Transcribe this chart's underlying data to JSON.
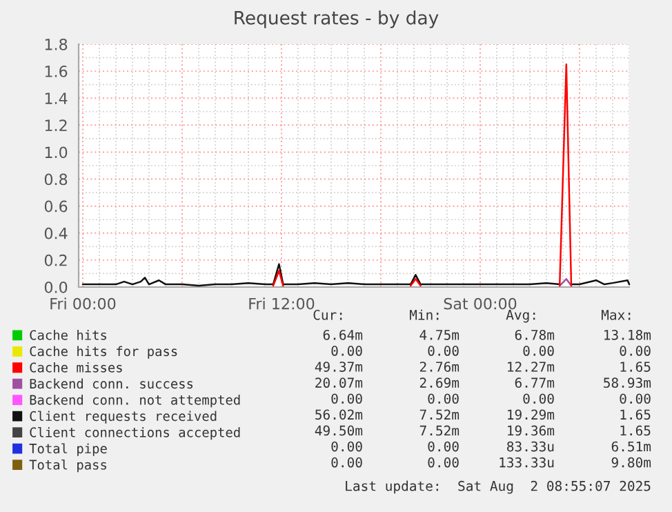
{
  "chart_data": {
    "type": "line",
    "title": "Request rates - by day",
    "x": [
      "2025-08-01T00:00",
      "2025-08-01T01:00",
      "2025-08-01T02:00",
      "2025-08-01T02:30",
      "2025-08-01T03:00",
      "2025-08-01T03:30",
      "2025-08-01T03:45",
      "2025-08-01T04:00",
      "2025-08-01T04:36",
      "2025-08-01T05:00",
      "2025-08-01T06:00",
      "2025-08-01T07:00",
      "2025-08-01T08:00",
      "2025-08-01T09:00",
      "2025-08-01T10:00",
      "2025-08-01T11:00",
      "2025-08-01T11:30",
      "2025-08-01T11:51",
      "2025-08-01T12:06",
      "2025-08-01T13:00",
      "2025-08-01T14:00",
      "2025-08-01T15:00",
      "2025-08-01T16:00",
      "2025-08-01T17:00",
      "2025-08-01T18:00",
      "2025-08-01T19:00",
      "2025-08-01T19:48",
      "2025-08-01T20:06",
      "2025-08-01T20:24",
      "2025-08-01T21:00",
      "2025-08-01T22:00",
      "2025-08-01T23:00",
      "2025-08-02T00:00",
      "2025-08-02T01:00",
      "2025-08-02T02:00",
      "2025-08-02T03:00",
      "2025-08-02T04:00",
      "2025-08-02T04:48",
      "2025-08-02T05:12",
      "2025-08-02T05:30",
      "2025-08-02T06:00",
      "2025-08-02T07:00",
      "2025-08-02T07:30",
      "2025-08-02T08:00",
      "2025-08-02T08:54",
      "2025-08-02T09:00"
    ],
    "series": [
      {
        "name": "Cache hits",
        "color": "#00cc00",
        "values": [
          null,
          null,
          null,
          null,
          null,
          null,
          null,
          null,
          null,
          null,
          null,
          null,
          null,
          null,
          null,
          null,
          null,
          null,
          null,
          null,
          null,
          null,
          null,
          null,
          null,
          null,
          null,
          null,
          null,
          null,
          null,
          null,
          null,
          null,
          null,
          null,
          null,
          null,
          null,
          null,
          null,
          null,
          null,
          null,
          null,
          null
        ]
      },
      {
        "name": "Cache hits for pass",
        "color": "#e8e800",
        "values": [
          null,
          null,
          null,
          null,
          null,
          null,
          null,
          null,
          null,
          null,
          null,
          null,
          null,
          null,
          null,
          null,
          null,
          null,
          null,
          null,
          null,
          null,
          null,
          null,
          null,
          null,
          null,
          null,
          null,
          null,
          null,
          null,
          null,
          null,
          null,
          null,
          null,
          null,
          null,
          null,
          null,
          null,
          null,
          null,
          null,
          null
        ]
      },
      {
        "name": "Cache misses",
        "color": "#ff0000",
        "values": [
          null,
          null,
          null,
          null,
          null,
          null,
          null,
          null,
          null,
          null,
          null,
          null,
          null,
          null,
          null,
          null,
          0.01,
          0.12,
          0.01,
          null,
          null,
          null,
          null,
          null,
          null,
          null,
          0.01,
          0.06,
          0.01,
          null,
          null,
          null,
          null,
          null,
          null,
          null,
          null,
          0.01,
          1.65,
          0.01,
          null,
          null,
          null,
          null,
          null,
          null
        ]
      },
      {
        "name": "Backend conn. success",
        "color": "#a050a0",
        "values": [
          null,
          null,
          null,
          null,
          null,
          null,
          null,
          null,
          null,
          null,
          null,
          null,
          null,
          null,
          null,
          null,
          null,
          null,
          null,
          null,
          null,
          null,
          null,
          null,
          null,
          null,
          null,
          null,
          null,
          null,
          null,
          null,
          null,
          null,
          null,
          null,
          null,
          0.01,
          0.06,
          0.01,
          null,
          null,
          null,
          null,
          null,
          null
        ]
      },
      {
        "name": "Backend conn. not attempted",
        "color": "#ff55ff",
        "values": [
          null,
          null,
          null,
          null,
          null,
          null,
          null,
          null,
          null,
          null,
          null,
          null,
          null,
          null,
          null,
          null,
          null,
          null,
          null,
          null,
          null,
          null,
          null,
          null,
          null,
          null,
          null,
          null,
          null,
          null,
          null,
          null,
          null,
          null,
          null,
          null,
          null,
          null,
          null,
          null,
          null,
          null,
          null,
          null,
          null,
          null
        ]
      },
      {
        "name": "Client requests received",
        "color": "#111111",
        "values": [
          0.02,
          0.02,
          0.02,
          0.04,
          0.02,
          0.04,
          0.07,
          0.02,
          0.05,
          0.02,
          0.02,
          0.01,
          0.02,
          0.02,
          0.03,
          0.02,
          0.02,
          0.17,
          0.02,
          0.02,
          0.03,
          0.02,
          0.03,
          0.02,
          0.02,
          0.02,
          0.02,
          0.09,
          0.02,
          0.02,
          0.02,
          0.02,
          0.02,
          0.02,
          0.02,
          0.02,
          0.03,
          0.02,
          null,
          0.02,
          0.02,
          0.05,
          0.02,
          0.03,
          0.05,
          0.02
        ]
      },
      {
        "name": "Client connections accepted",
        "color": "#444444",
        "values": [
          null,
          null,
          null,
          null,
          null,
          null,
          null,
          null,
          null,
          null,
          null,
          null,
          null,
          null,
          null,
          null,
          null,
          null,
          null,
          null,
          null,
          null,
          null,
          null,
          null,
          null,
          null,
          null,
          null,
          null,
          null,
          null,
          null,
          null,
          null,
          null,
          null,
          null,
          null,
          null,
          null,
          null,
          null,
          null,
          null,
          null
        ]
      },
      {
        "name": "Total pipe",
        "color": "#2030e0",
        "values": [
          null,
          null,
          null,
          null,
          null,
          null,
          null,
          null,
          null,
          null,
          null,
          null,
          null,
          null,
          null,
          null,
          null,
          null,
          null,
          null,
          null,
          null,
          null,
          null,
          null,
          null,
          null,
          null,
          null,
          null,
          null,
          null,
          null,
          null,
          null,
          null,
          null,
          null,
          null,
          null,
          null,
          null,
          null,
          null,
          null,
          null
        ]
      },
      {
        "name": "Total pass",
        "color": "#7f5f10",
        "values": [
          null,
          null,
          null,
          null,
          null,
          null,
          null,
          null,
          null,
          null,
          null,
          null,
          null,
          null,
          null,
          null,
          null,
          null,
          null,
          null,
          null,
          null,
          null,
          null,
          null,
          null,
          null,
          null,
          null,
          null,
          null,
          null,
          null,
          null,
          null,
          null,
          null,
          null,
          null,
          null,
          null,
          null,
          null,
          null,
          null,
          null
        ]
      }
    ],
    "xlim": [
      "2025-07-31T23:45",
      "2025-08-02T09:00"
    ],
    "xticks": [
      {
        "value": "2025-08-01T00:00",
        "label": "Fri 00:00"
      },
      {
        "value": "2025-08-01T06:00",
        "label": null
      },
      {
        "value": "2025-08-01T12:00",
        "label": "Fri 12:00"
      },
      {
        "value": "2025-08-01T18:00",
        "label": null
      },
      {
        "value": "2025-08-02T00:00",
        "label": "Sat 00:00"
      },
      {
        "value": "2025-08-02T06:00",
        "label": null
      }
    ],
    "ylim": [
      0,
      1.8
    ],
    "yticks": [
      {
        "value": 0,
        "label": "0.0"
      },
      {
        "value": 0.2,
        "label": "0.2"
      },
      {
        "value": 0.4,
        "label": "0.4"
      },
      {
        "value": 0.6,
        "label": "0.6"
      },
      {
        "value": 0.8,
        "label": "0.8"
      },
      {
        "value": 1.0,
        "label": "1.0"
      },
      {
        "value": 1.2,
        "label": "1.2"
      },
      {
        "value": 1.4,
        "label": "1.4"
      },
      {
        "value": 1.6,
        "label": "1.6"
      },
      {
        "value": 1.8,
        "label": "1.8"
      }
    ],
    "grid": true,
    "legend": "bottom",
    "line_style": "solid",
    "annotations": [
      "Cur:",
      "Min:",
      "Avg:",
      "Max:",
      "6.64m",
      "4.75m",
      "6.78m",
      "13.18m",
      "0.00",
      "0.00",
      "0.00",
      "0.00",
      "49.37m",
      "2.76m",
      "12.27m",
      "1.65",
      "20.07m",
      "2.69m",
      "6.77m",
      "58.93m",
      "0.00",
      "0.00",
      "0.00",
      "0.00",
      "56.02m",
      "7.52m",
      "19.29m",
      "1.65",
      "49.50m",
      "7.52m",
      "19.36m",
      "1.65",
      "0.00",
      "0.00",
      "83.33u",
      "6.51m",
      "0.00",
      "0.00",
      "133.33u",
      "9.80m",
      "Last update:  Sat Aug  2 08:55:07 2025"
    ]
  }
}
